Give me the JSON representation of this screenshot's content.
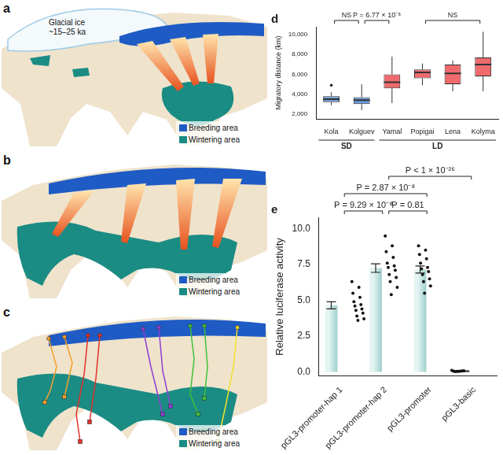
{
  "maps": [
    {
      "label": "a",
      "annotation": [
        "Glacial ice",
        "~15–25 ka"
      ],
      "keys": [
        {
          "label": "Breeding area",
          "color": "#1f5bc4"
        },
        {
          "label": "Wintering area",
          "color": "#1a8c84"
        }
      ]
    },
    {
      "label": "b",
      "keys": [
        {
          "label": "Breeding area",
          "color": "#1f5bc4"
        },
        {
          "label": "Wintering area",
          "color": "#1a8c84"
        }
      ]
    },
    {
      "label": "c",
      "keys": [
        {
          "label": "Breeding area",
          "color": "#1f5bc4"
        },
        {
          "label": "Wintering area",
          "color": "#1a8c84"
        }
      ]
    }
  ],
  "chart_data": [
    {
      "type": "box",
      "title": "d",
      "ylabel": "Migratory distance (km)",
      "categories": [
        "Kola",
        "Kolguev",
        "Yamal",
        "Popigai",
        "Lena",
        "Kolyma"
      ],
      "groups": [
        {
          "label": "SD",
          "categories": [
            "Kola",
            "Kolguev"
          ]
        },
        {
          "label": "LD",
          "categories": [
            "Yamal",
            "Popigai",
            "Lena",
            "Kolyma"
          ]
        }
      ],
      "boxes": [
        {
          "whisker_low": 2900,
          "q1": 3200,
          "median": 3500,
          "q3": 3800,
          "whisker_high": 4200,
          "outliers": [
            4900
          ]
        },
        {
          "whisker_low": 2400,
          "q1": 3000,
          "median": 3400,
          "q3": 3700,
          "whisker_high": 5000,
          "outliers": []
        },
        {
          "whisker_low": 3100,
          "q1": 4600,
          "median": 5200,
          "q3": 6000,
          "whisker_high": 7800,
          "outliers": []
        },
        {
          "whisker_low": 4900,
          "q1": 5600,
          "median": 6200,
          "q3": 6500,
          "whisker_high": 7100,
          "outliers": []
        },
        {
          "whisker_low": 4300,
          "q1": 5000,
          "median": 6100,
          "q3": 7000,
          "whisker_high": 7400,
          "outliers": []
        },
        {
          "whisker_low": 4300,
          "q1": 5800,
          "median": 7000,
          "q3": 7700,
          "whisker_high": 10300,
          "outliers": []
        }
      ],
      "colors": [
        "#6a9bd8",
        "#6a9bd8",
        "#ef6a6d",
        "#ef6a6d",
        "#ef6a6d",
        "#ef6a6d"
      ],
      "ylim": [
        1500,
        10800
      ],
      "yticks": [
        {
          "value": 2000,
          "label": "2,000"
        },
        {
          "value": 4000,
          "label": "4,000"
        },
        {
          "value": 6000,
          "label": "6,000"
        },
        {
          "value": 8000,
          "label": "8,000"
        },
        {
          "value": 10000,
          "label": "10,000"
        }
      ],
      "grid": false,
      "annotations": [
        {
          "text": "NS",
          "from": "Kola",
          "to": "Kolguev"
        },
        {
          "text": "P = 6.77 × 10⁻⁸",
          "from": "Kolguev",
          "to": "Yamal"
        },
        {
          "text": "NS",
          "from": "Popigai",
          "to": "Kolyma"
        }
      ]
    },
    {
      "type": "bar",
      "title": "e",
      "ylabel": "Relative luciferase activity",
      "categories": [
        "pGL3-promoter-hap 1",
        "pGL3-promoter-hap 2",
        "pGL3-promoter",
        "pGL3-basic"
      ],
      "values": [
        4.65,
        7.25,
        7.15,
        0.05
      ],
      "errors": [
        0.25,
        0.3,
        0.25,
        0.02
      ],
      "points": [
        [
          6.3,
          5.9,
          5.5,
          5.2,
          4.9,
          4.7,
          4.6,
          4.4,
          4.3,
          4.1,
          3.9,
          3.7,
          3.6
        ],
        [
          9.5,
          8.8,
          8.4,
          8.0,
          7.6,
          7.4,
          7.3,
          7.1,
          6.8,
          6.6,
          6.3,
          5.9,
          5.4
        ],
        [
          8.8,
          8.5,
          8.2,
          7.9,
          7.6,
          7.3,
          7.2,
          7.0,
          6.8,
          6.5,
          6.3,
          6.0,
          5.5
        ],
        [
          0.1,
          0.08,
          0.06,
          0.05,
          0.04,
          0.03,
          0.02,
          0.05
        ]
      ],
      "color": "#1a8c84",
      "ylim": [
        -0.3,
        10.8
      ],
      "yticks": [
        {
          "value": 0,
          "label": "0.0"
        },
        {
          "value": 2.5,
          "label": "2.5"
        },
        {
          "value": 5,
          "label": "5.0"
        },
        {
          "value": 7.5,
          "label": "7.5"
        },
        {
          "value": 10,
          "label": "10.0"
        }
      ],
      "grid": false,
      "annotations": [
        {
          "text": "P = 9.29 × 10⁻⁸",
          "from": "pGL3-promoter-hap 1",
          "to": "pGL3-promoter-hap 2"
        },
        {
          "text": "P = 0.81",
          "from": "pGL3-promoter-hap 2",
          "to": "pGL3-promoter"
        },
        {
          "text": "P = 2.87 × 10⁻⁸",
          "from": "pGL3-promoter-hap 1",
          "to": "pGL3-promoter"
        },
        {
          "text": "P < 1 × 10⁻²⁶",
          "from": "pGL3-promoter-hap 2",
          "to": "pGL3-basic"
        }
      ]
    }
  ]
}
